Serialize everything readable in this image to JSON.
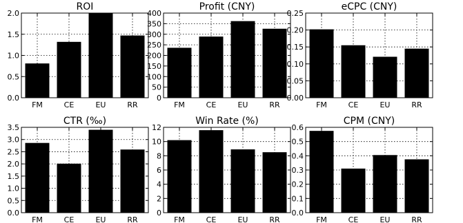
{
  "chart_data": [
    {
      "type": "bar",
      "title": "ROI",
      "categories": [
        "FM",
        "CE",
        "EU",
        "RR"
      ],
      "values": [
        0.81,
        1.32,
        2.0,
        1.47
      ],
      "ylim": [
        0.0,
        2.0
      ],
      "yticks": [
        0.0,
        0.5,
        1.0,
        1.5,
        2.0
      ],
      "ytick_labels": [
        "0.0",
        "0.5",
        "1.0",
        "1.5",
        "2.0"
      ],
      "grid": true,
      "color": "#000000"
    },
    {
      "type": "bar",
      "title": "Profit (CNY)",
      "categories": [
        "FM",
        "CE",
        "EU",
        "RR"
      ],
      "values": [
        236,
        289,
        362,
        326
      ],
      "ylim": [
        0,
        400
      ],
      "yticks": [
        0,
        50,
        100,
        150,
        200,
        250,
        300,
        350,
        400
      ],
      "ytick_labels": [
        "0",
        "50",
        "100",
        "150",
        "200",
        "250",
        "300",
        "350",
        "400"
      ],
      "grid": true,
      "color": "#000000"
    },
    {
      "type": "bar",
      "title": "eCPC (CNY)",
      "categories": [
        "FM",
        "CE",
        "EU",
        "RR"
      ],
      "values": [
        0.202,
        0.155,
        0.121,
        0.145
      ],
      "ylim": [
        0.0,
        0.25
      ],
      "yticks": [
        0.0,
        0.05,
        0.1,
        0.15,
        0.2,
        0.25
      ],
      "ytick_labels": [
        "0.00",
        "0.05",
        "0.10",
        "0.15",
        "0.20",
        "0.25"
      ],
      "grid": true,
      "color": "#000000"
    },
    {
      "type": "bar",
      "title": "CTR (‰)",
      "categories": [
        "FM",
        "CE",
        "EU",
        "RR"
      ],
      "values": [
        2.86,
        2.01,
        3.4,
        2.59
      ],
      "ylim": [
        0.0,
        3.5
      ],
      "yticks": [
        0.0,
        0.5,
        1.0,
        1.5,
        2.0,
        2.5,
        3.0,
        3.5
      ],
      "ytick_labels": [
        "0.0",
        "0.5",
        "1.0",
        "1.5",
        "2.0",
        "2.5",
        "3.0",
        "3.5"
      ],
      "grid": true,
      "color": "#000000"
    },
    {
      "type": "bar",
      "title": "Win Rate (%)",
      "categories": [
        "FM",
        "CE",
        "EU",
        "RR"
      ],
      "values": [
        10.2,
        11.6,
        8.9,
        8.5
      ],
      "ylim": [
        0,
        12
      ],
      "yticks": [
        0,
        2,
        4,
        6,
        8,
        10,
        12
      ],
      "ytick_labels": [
        "0",
        "2",
        "4",
        "6",
        "8",
        "10",
        "12"
      ],
      "grid": true,
      "color": "#000000"
    },
    {
      "type": "bar",
      "title": "CPM (CNY)",
      "categories": [
        "FM",
        "CE",
        "EU",
        "RR"
      ],
      "values": [
        0.575,
        0.31,
        0.405,
        0.375
      ],
      "ylim": [
        0.0,
        0.6
      ],
      "yticks": [
        0.0,
        0.1,
        0.2,
        0.3,
        0.4,
        0.5,
        0.6
      ],
      "ytick_labels": [
        "0.0",
        "0.1",
        "0.2",
        "0.3",
        "0.4",
        "0.5",
        "0.6"
      ],
      "grid": true,
      "color": "#000000"
    }
  ]
}
